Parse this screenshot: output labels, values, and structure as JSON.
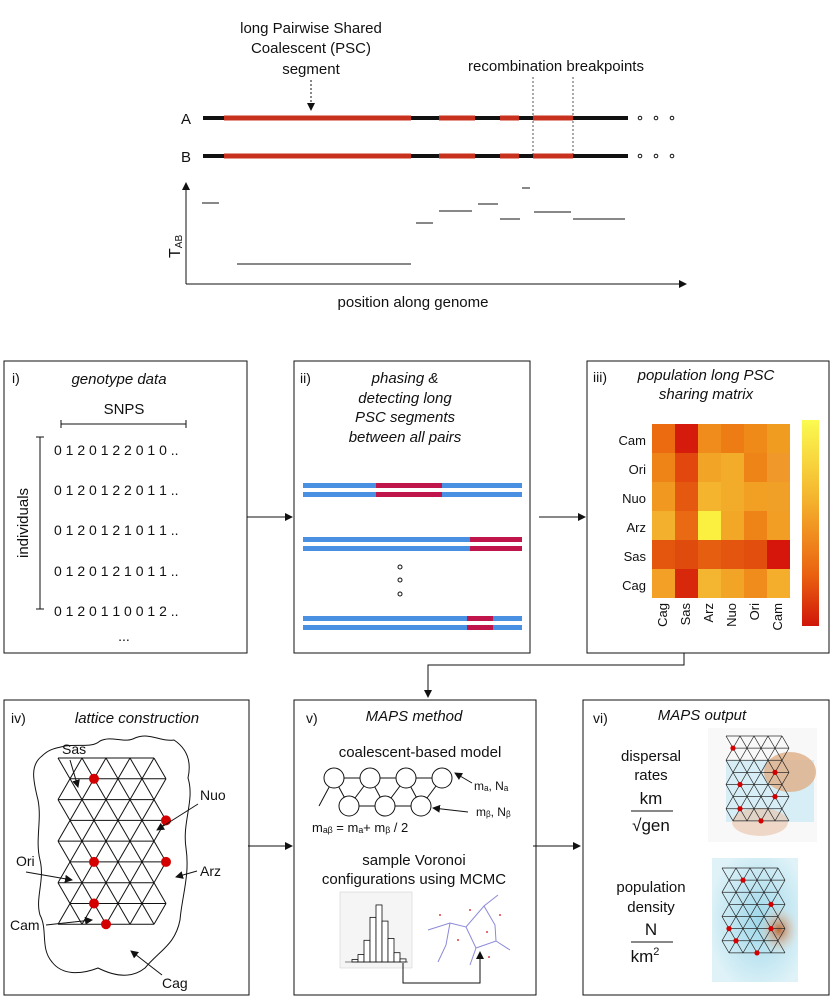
{
  "top": {
    "psc_label": [
      "long Pairwise Shared",
      "Coalescent (PSC)",
      "segment"
    ],
    "recomb_label": "recombination breakpoints",
    "row_a": "A",
    "row_b": "B",
    "y_label": "T",
    "y_label_sub": "AB",
    "x_label": "position along genome"
  },
  "panels": {
    "p1": {
      "num": "i)",
      "title": "genotype data",
      "snps": "SNPS",
      "individuals": "individuals",
      "rows": [
        "0 1 2 0 1 2 2 0 1 0 ..",
        "0 1 2 0 1 2 2 0 1 1 ..",
        "0 1 2 0 1 2 1 0 1 1 ..",
        "0 1 2 0 1 2 1 0 1 1 ..",
        "0 1 2 0 1 1 0 0 1 2 .."
      ],
      "more": "..."
    },
    "p2": {
      "num": "ii)",
      "title": [
        "phasing &",
        "detecting long",
        "PSC segments",
        "between all pairs"
      ]
    },
    "p3": {
      "num": "iii)",
      "title": [
        "population long PSC",
        "sharing matrix"
      ],
      "rows": [
        "Cam",
        "Ori",
        "Nuo",
        "Arz",
        "Sas",
        "Cag"
      ],
      "cols": [
        "Cag",
        "Sas",
        "Arz",
        "Nuo",
        "Ori",
        "Cam"
      ],
      "matrix": [
        [
          "#ec6a10",
          "#d51c0c",
          "#ef8c1c",
          "#ed7c14",
          "#ef8a18",
          "#f09c20"
        ],
        [
          "#ee8418",
          "#e2480e",
          "#f2a426",
          "#f3ac2a",
          "#ee8418",
          "#f1982a"
        ],
        [
          "#f09820",
          "#e5580f",
          "#f4b42e",
          "#f3ac2a",
          "#f2a024",
          "#f0a026"
        ],
        [
          "#f3b02c",
          "#ea6a14",
          "#fbef3f",
          "#f2a826",
          "#ee8418",
          "#f29e24"
        ],
        [
          "#e4560e",
          "#df4a0d",
          "#e65e10",
          "#e4560f",
          "#e14e0d",
          "#d6160b"
        ],
        [
          "#f2a026",
          "#d8280b",
          "#f4b630",
          "#f2a426",
          "#ef8c1c",
          "#f4ae2c"
        ]
      ]
    },
    "p4": {
      "num": "iv)",
      "title": "lattice construction",
      "labels": {
        "sas": "Sas",
        "nuo": "Nuo",
        "ori": "Ori",
        "arz": "Arz",
        "cam": "Cam",
        "cag": "Cag"
      }
    },
    "p5": {
      "num": "v)",
      "title": "MAPS method",
      "model": "coalescent-based model",
      "m_top": "mₐ, Nₐ",
      "m_bot": "mᵦ, Nᵦ",
      "m_eq": "mₐᵦ = mₐ+ mᵦ / 2",
      "sample": [
        "sample Voronoi",
        "configurations using MCMC"
      ]
    },
    "p6": {
      "num": "vi)",
      "title": "MAPS output",
      "dispersal": [
        "dispersal",
        "rates"
      ],
      "dispersal_num": "km",
      "dispersal_den": "√gen",
      "density": [
        "population",
        "density"
      ],
      "density_num": "N",
      "density_den": "km",
      "density_den_sup": "2"
    }
  },
  "colors": {
    "segment_red": "#c8311e",
    "haplotype_blue": "#4a90e2",
    "haplotype_red": "#c0154b",
    "lattice_node": "#d40000"
  }
}
